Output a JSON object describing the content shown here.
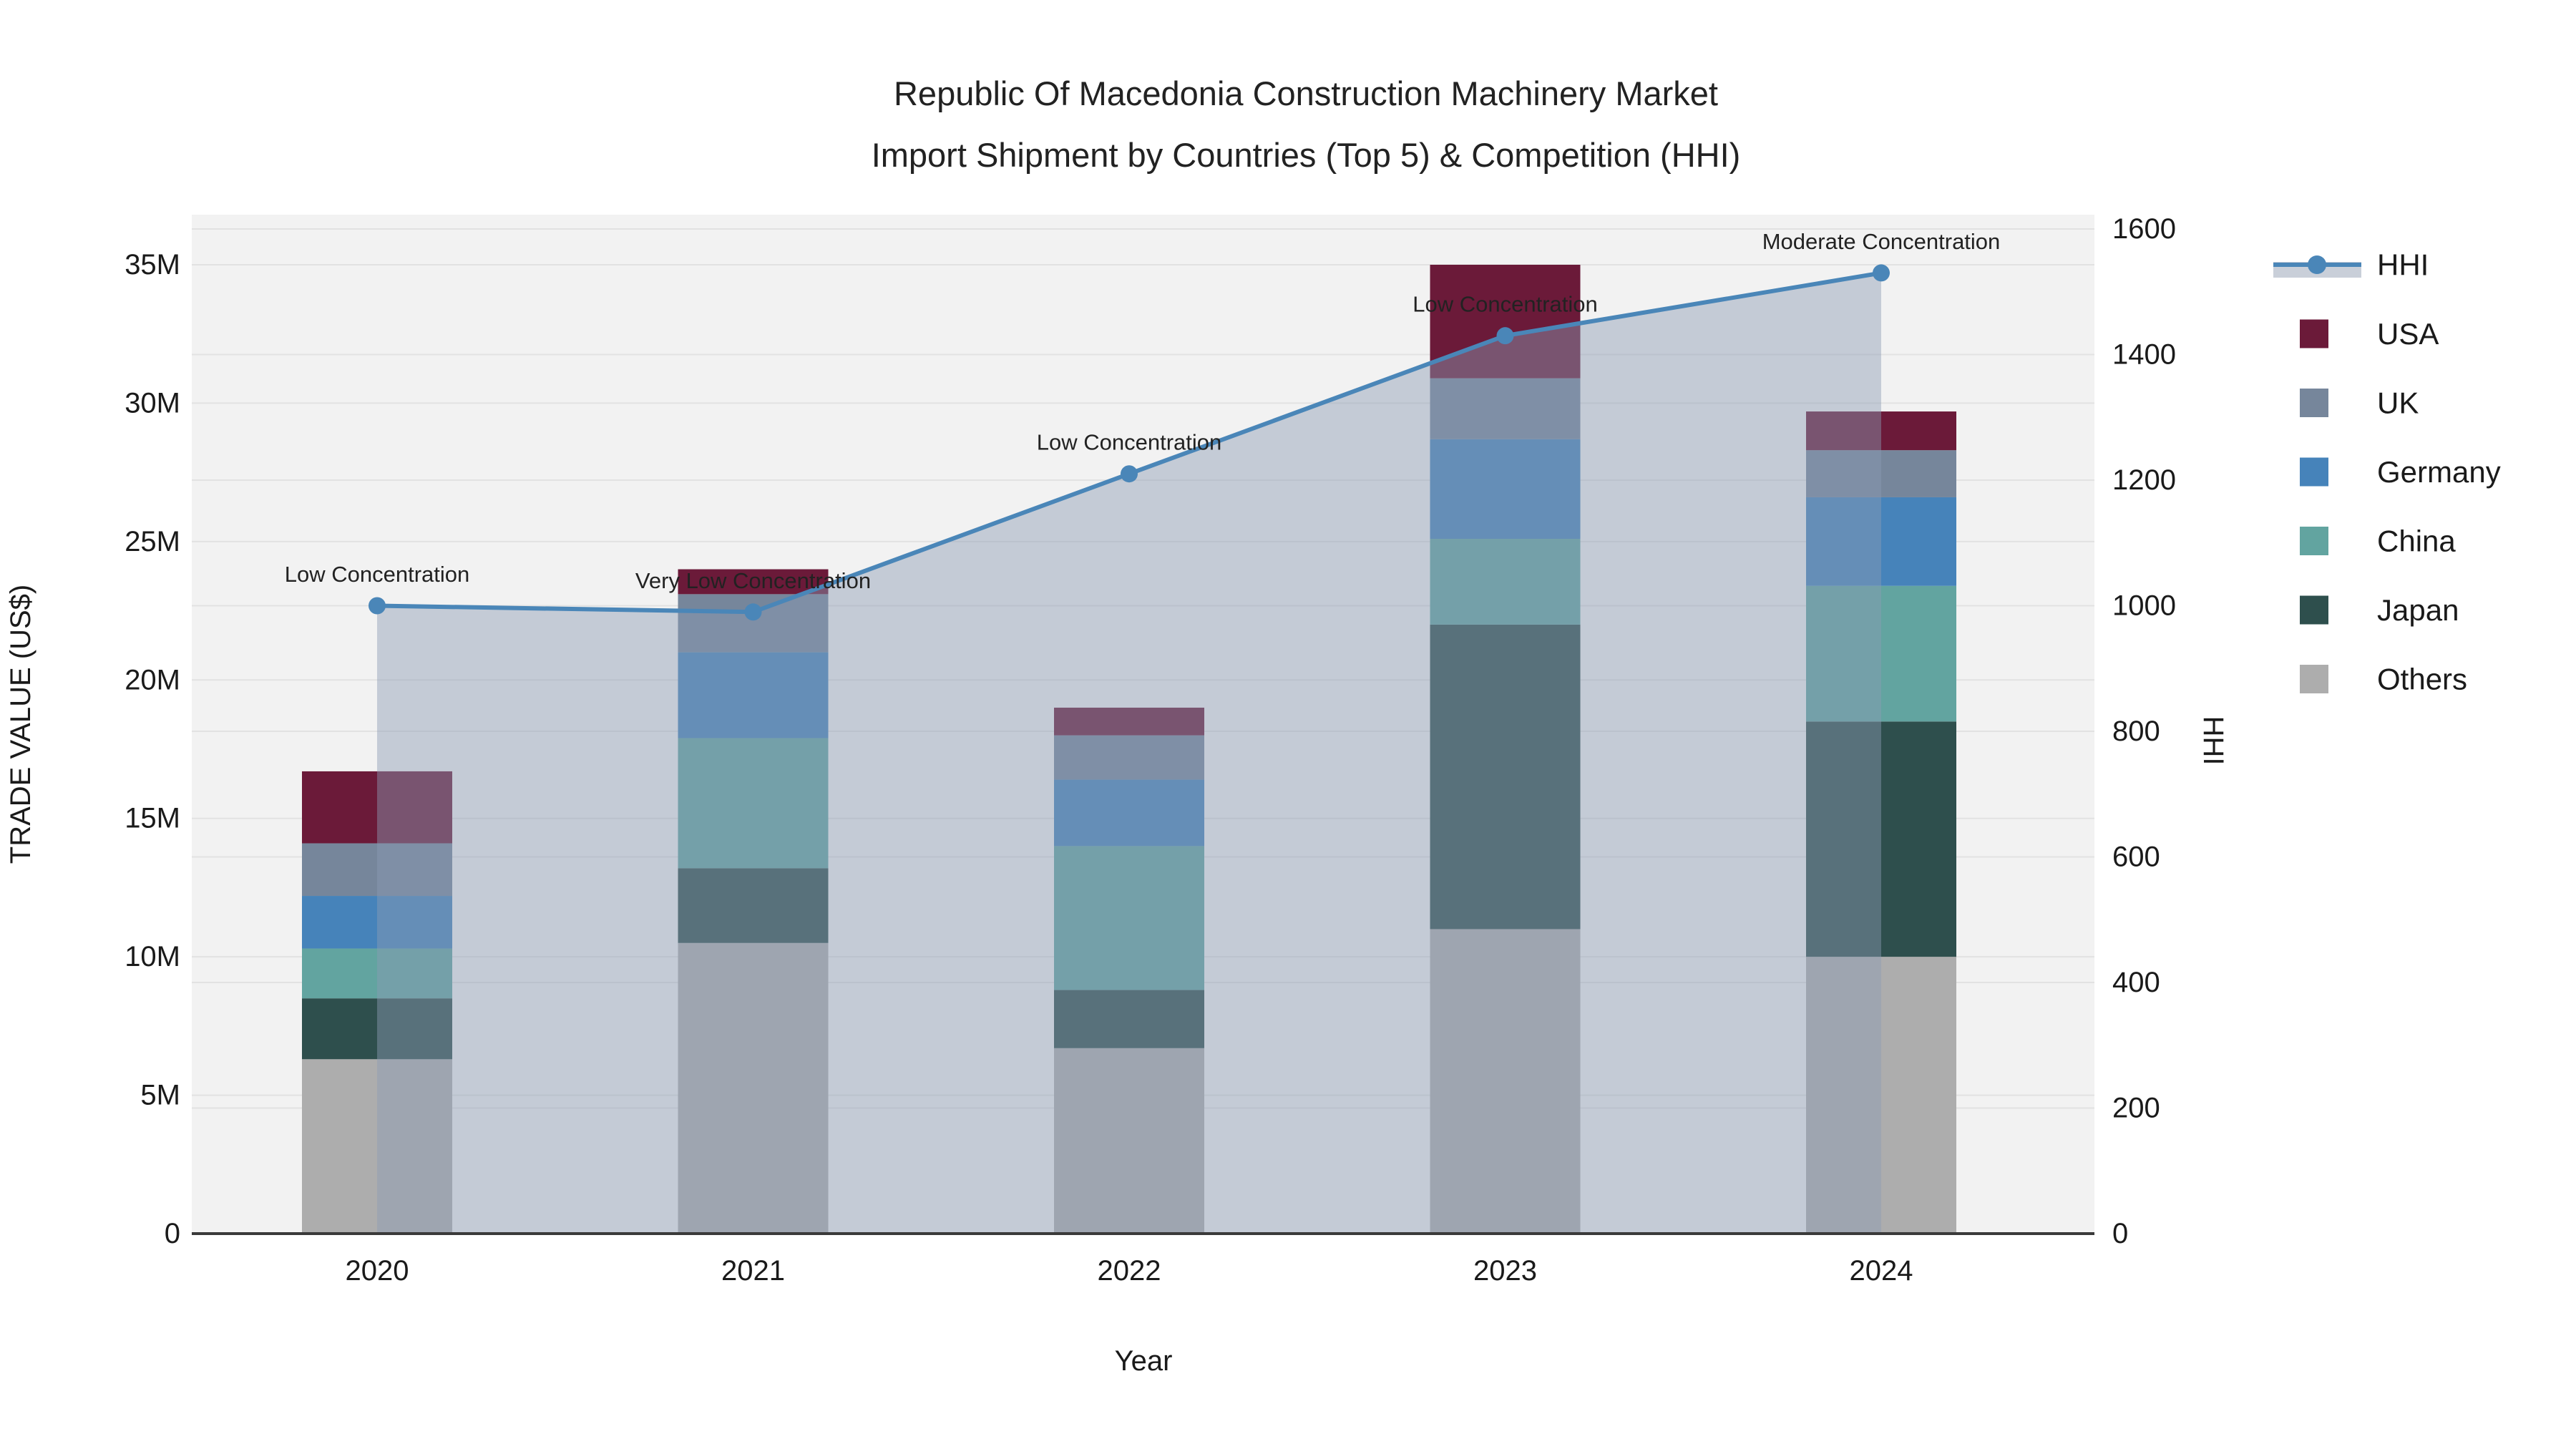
{
  "title": {
    "line1": "Republic Of Macedonia Construction Machinery Market",
    "line2": "Import Shipment by Countries (Top 5) & Competition (HHI)"
  },
  "axes": {
    "x_title": "Year",
    "y_left_title": "TRADE VALUE (US$)",
    "y_right_title": "HHI",
    "y_left_tick_labels": [
      "0",
      "5M",
      "10M",
      "15M",
      "20M",
      "25M",
      "30M",
      "35M"
    ],
    "y_left_tick_values": [
      0,
      5,
      10,
      15,
      20,
      25,
      30,
      35
    ],
    "y_right_tick_labels": [
      "0",
      "200",
      "400",
      "600",
      "800",
      "1000",
      "1200",
      "1400",
      "1600"
    ],
    "y_right_tick_values": [
      0,
      200,
      400,
      600,
      800,
      1000,
      1200,
      1400,
      1600
    ]
  },
  "legend": {
    "entries": [
      {
        "label": "HHI",
        "type": "line"
      },
      {
        "label": "USA",
        "type": "swatch",
        "color": "#6b1a39"
      },
      {
        "label": "UK",
        "type": "swatch",
        "color": "#76869b"
      },
      {
        "label": "Germany",
        "type": "swatch",
        "color": "#4683ba"
      },
      {
        "label": "China",
        "type": "swatch",
        "color": "#62a4a0"
      },
      {
        "label": "Japan",
        "type": "swatch",
        "color": "#2e4f4d"
      },
      {
        "label": "Others",
        "type": "swatch",
        "color": "#adadad"
      }
    ]
  },
  "colors": {
    "plot_bg": "#f2f2f2",
    "gridline": "#e2e2e2",
    "baseline": "#3a3a3a",
    "hhi_line": "#4a86b8",
    "hhi_fill": "rgba(140,155,180,0.45)",
    "hhi_legend_band": "#c9cfd9"
  },
  "chart_data": {
    "type": "bar+line",
    "title": "Republic Of Macedonia Construction Machinery Market Import Shipment by Countries (Top 5) & Competition (HHI)",
    "xlabel": "Year",
    "ylabel_left": "TRADE VALUE (US$)",
    "ylabel_right": "HHI",
    "ylim_left_millions": [
      0,
      35
    ],
    "ylim_right": [
      0,
      1600
    ],
    "grid": true,
    "legend_position": "right",
    "categories": [
      "2020",
      "2021",
      "2022",
      "2023",
      "2024"
    ],
    "bar_value_unit": "million US$",
    "series": [
      {
        "name": "Others",
        "color": "#adadad",
        "values": [
          6.3,
          10.5,
          6.7,
          11.0,
          10.0
        ]
      },
      {
        "name": "Japan",
        "color": "#2e4f4d",
        "values": [
          2.2,
          2.7,
          2.1,
          11.0,
          8.5
        ]
      },
      {
        "name": "China",
        "color": "#62a4a0",
        "values": [
          1.8,
          4.7,
          5.2,
          3.1,
          4.9
        ]
      },
      {
        "name": "Germany",
        "color": "#4683ba",
        "values": [
          1.9,
          3.1,
          2.4,
          3.6,
          3.2
        ]
      },
      {
        "name": "UK",
        "color": "#76869b",
        "values": [
          1.9,
          2.1,
          1.6,
          2.2,
          1.7
        ]
      },
      {
        "name": "USA",
        "color": "#6b1a39",
        "values": [
          2.6,
          0.9,
          1.0,
          4.1,
          1.4
        ]
      }
    ],
    "bar_totals_millions": [
      16.7,
      24.0,
      19.0,
      35.0,
      29.7
    ],
    "line_series": {
      "name": "HHI",
      "values": [
        1000,
        990,
        1210,
        1430,
        1530
      ],
      "marker": "circle",
      "area_fill_to_zero": true
    },
    "annotations": [
      {
        "x": "2020",
        "text": "Low Concentration"
      },
      {
        "x": "2021",
        "text": "Very Low Concentration"
      },
      {
        "x": "2022",
        "text": "Low Concentration"
      },
      {
        "x": "2023",
        "text": "Low Concentration"
      },
      {
        "x": "2024",
        "text": "Moderate Concentration"
      }
    ]
  }
}
